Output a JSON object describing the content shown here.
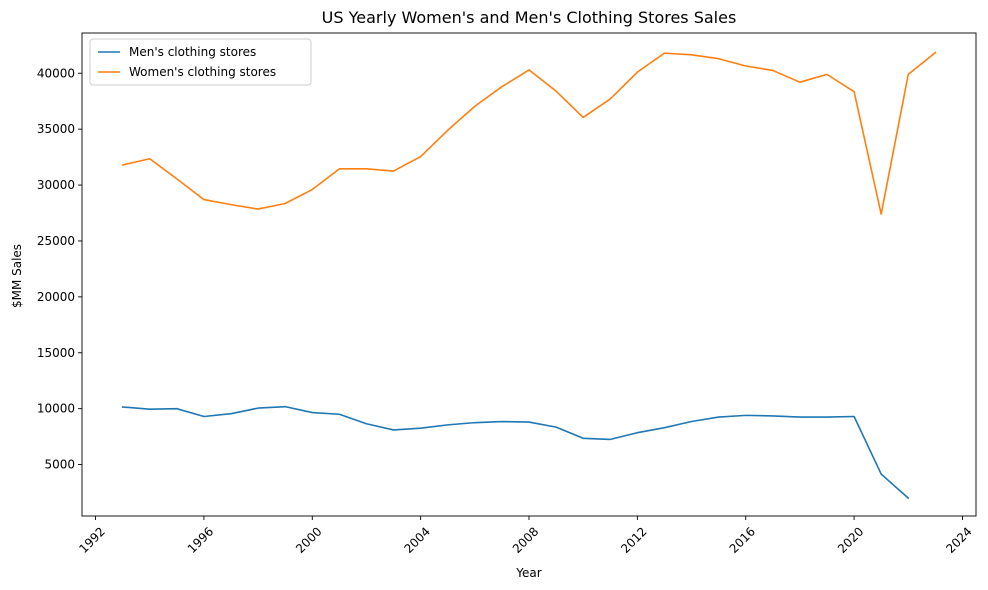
{
  "chart_data": {
    "type": "line",
    "title": "US Yearly Women's and Men's Clothing Stores Sales",
    "xlabel": "Year",
    "ylabel": "$MM Sales",
    "xlim": [
      1991.5,
      2024.5
    ],
    "ylim": [
      400,
      43600
    ],
    "x_ticks": [
      1992,
      1996,
      2000,
      2004,
      2008,
      2012,
      2016,
      2020,
      2024
    ],
    "y_ticks": [
      5000,
      10000,
      15000,
      20000,
      25000,
      30000,
      35000,
      40000
    ],
    "grid": false,
    "legend_position": "top-left",
    "series": [
      {
        "name": "Men's clothing stores",
        "color": "#1f77b4",
        "x": [
          1993,
          1994,
          1995,
          1996,
          1997,
          1998,
          1999,
          2000,
          2001,
          2002,
          2003,
          2004,
          2005,
          2006,
          2007,
          2008,
          2009,
          2010,
          2011,
          2012,
          2013,
          2014,
          2015,
          2016,
          2017,
          2018,
          2019,
          2020,
          2021,
          2022
        ],
        "values": [
          10150,
          9950,
          10000,
          9300,
          9550,
          10050,
          10180,
          9650,
          9500,
          8650,
          8100,
          8250,
          8550,
          8750,
          8850,
          8800,
          8350,
          7350,
          7250,
          7850,
          8300,
          8850,
          9250,
          9400,
          9350,
          9250,
          9250,
          9300,
          4150,
          2000
        ]
      },
      {
        "name": "Women's clothing stores",
        "color": "#ff7f0e",
        "x": [
          1993,
          1994,
          1995,
          1996,
          1997,
          1998,
          1999,
          2000,
          2001,
          2002,
          2003,
          2004,
          2005,
          2006,
          2007,
          2008,
          2009,
          2010,
          2011,
          2012,
          2013,
          2014,
          2015,
          2016,
          2017,
          2018,
          2019,
          2020,
          2021,
          2022,
          2023
        ],
        "values": [
          31800,
          32350,
          30550,
          28700,
          28250,
          27850,
          28350,
          29600,
          31450,
          31450,
          31250,
          32550,
          34900,
          37050,
          38800,
          40300,
          38400,
          36050,
          37700,
          40100,
          41800,
          41650,
          41300,
          40650,
          40250,
          39200,
          39900,
          38350,
          27400,
          39900,
          41850
        ]
      }
    ]
  }
}
